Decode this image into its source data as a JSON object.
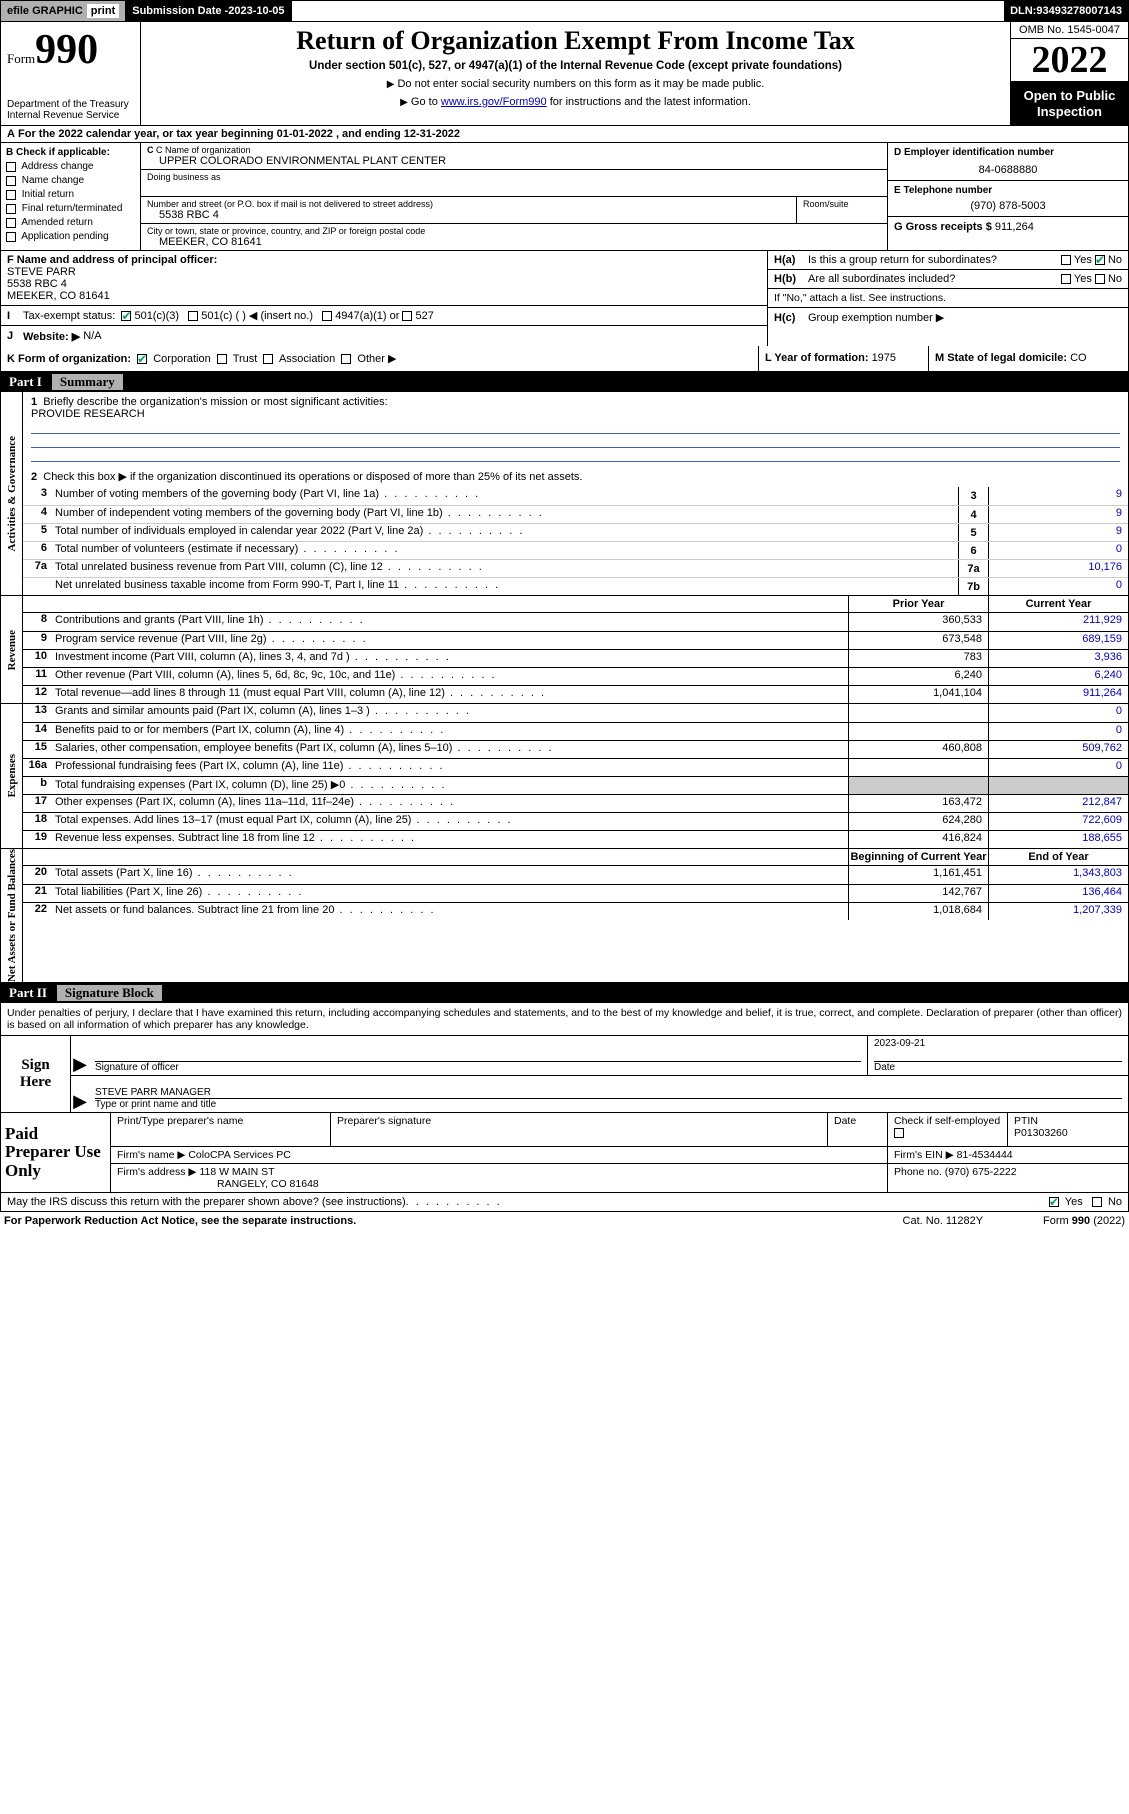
{
  "topbar": {
    "efile": "efile GRAPHIC",
    "print": "print",
    "subdate_lbl": "Submission Date - ",
    "subdate": "2023-10-05",
    "dln_lbl": "DLN: ",
    "dln": "93493278007143"
  },
  "header": {
    "form_prefix": "Form",
    "form_num": "990",
    "dept": "Department of the Treasury",
    "irs": "Internal Revenue Service",
    "title": "Return of Organization Exempt From Income Tax",
    "sub": "Under section 501(c), 527, or 4947(a)(1) of the Internal Revenue Code (except private foundations)",
    "note1": "Do not enter social security numbers on this form as it may be made public.",
    "note2_pre": "Go to ",
    "note2_link": "www.irs.gov/Form990",
    "note2_post": " for instructions and the latest information.",
    "omb": "OMB No. 1545-0047",
    "year": "2022",
    "open": "Open to Public Inspection"
  },
  "rowA": "For the 2022 calendar year, or tax year beginning 01-01-2022   , and ending 12-31-2022",
  "colB": {
    "hdr": "B Check if applicable:",
    "items": [
      "Address change",
      "Name change",
      "Initial return",
      "Final return/terminated",
      "Amended return",
      "Application pending"
    ]
  },
  "colC": {
    "name_lbl": "C Name of organization",
    "name": "UPPER COLORADO ENVIRONMENTAL PLANT CENTER",
    "dba_lbl": "Doing business as",
    "addr_lbl": "Number and street (or P.O. box if mail is not delivered to street address)",
    "room_lbl": "Room/suite",
    "addr": "5538 RBC 4",
    "city_lbl": "City or town, state or province, country, and ZIP or foreign postal code",
    "city": "MEEKER, CO  81641"
  },
  "colD": {
    "ein_lbl": "D Employer identification number",
    "ein": "84-0688880",
    "tel_lbl": "E Telephone number",
    "tel": "(970) 878-5003",
    "gross_lbl": "G Gross receipts $ ",
    "gross": "911,264"
  },
  "rowF": {
    "lbl": "F  Name and address of principal officer:",
    "name": "STEVE PARR",
    "addr1": "5538 RBC 4",
    "addr2": "MEEKER, CO  81641"
  },
  "rowH": {
    "a_lbl": "Is this a group return for subordinates?",
    "a_yes": "Yes",
    "a_no": "No",
    "b_lbl": "Are all subordinates included?",
    "b_yes": "Yes",
    "b_no": "No",
    "b_note": "If \"No,\" attach a list. See instructions.",
    "c_lbl": "Group exemption number ▶"
  },
  "rowI": {
    "lbl": "Tax-exempt status:",
    "o1": "501(c)(3)",
    "o2": "501(c) (   ) ◀ (insert no.)",
    "o3": "4947(a)(1) or",
    "o4": "527"
  },
  "rowJ": {
    "lbl": "Website: ▶",
    "val": "N/A"
  },
  "rowK": {
    "lbl": "K Form of organization:",
    "o1": "Corporation",
    "o2": "Trust",
    "o3": "Association",
    "o4": "Other ▶",
    "L_lbl": "L Year of formation: ",
    "L_val": "1975",
    "M_lbl": "M State of legal domicile: ",
    "M_val": "CO"
  },
  "part1": {
    "hdr_part": "Part I",
    "hdr_title": "Summary",
    "side_gov": "Activities & Governance",
    "side_rev": "Revenue",
    "side_exp": "Expenses",
    "side_net": "Net Assets or Fund Balances",
    "l1": "Briefly describe the organization's mission or most significant activities:",
    "mission": "PROVIDE RESEARCH",
    "l2": "Check this box ▶      if the organization discontinued its operations or disposed of more than 25% of its net assets.",
    "lines_gov": [
      {
        "n": "3",
        "t": "Number of voting members of the governing body (Part VI, line 1a)",
        "b": "3",
        "v": "9"
      },
      {
        "n": "4",
        "t": "Number of independent voting members of the governing body (Part VI, line 1b)",
        "b": "4",
        "v": "9"
      },
      {
        "n": "5",
        "t": "Total number of individuals employed in calendar year 2022 (Part V, line 2a)",
        "b": "5",
        "v": "9"
      },
      {
        "n": "6",
        "t": "Total number of volunteers (estimate if necessary)",
        "b": "6",
        "v": "0"
      },
      {
        "n": "7a",
        "t": "Total unrelated business revenue from Part VIII, column (C), line 12",
        "b": "7a",
        "v": "10,176"
      },
      {
        "n": "",
        "t": "Net unrelated business taxable income from Form 990-T, Part I, line 11",
        "b": "7b",
        "v": "0"
      }
    ],
    "col_prior": "Prior Year",
    "col_curr": "Current Year",
    "lines_rev": [
      {
        "n": "8",
        "t": "Contributions and grants (Part VIII, line 1h)",
        "p": "360,533",
        "c": "211,929"
      },
      {
        "n": "9",
        "t": "Program service revenue (Part VIII, line 2g)",
        "p": "673,548",
        "c": "689,159"
      },
      {
        "n": "10",
        "t": "Investment income (Part VIII, column (A), lines 3, 4, and 7d )",
        "p": "783",
        "c": "3,936"
      },
      {
        "n": "11",
        "t": "Other revenue (Part VIII, column (A), lines 5, 6d, 8c, 9c, 10c, and 11e)",
        "p": "6,240",
        "c": "6,240"
      },
      {
        "n": "12",
        "t": "Total revenue—add lines 8 through 11 (must equal Part VIII, column (A), line 12)",
        "p": "1,041,104",
        "c": "911,264"
      }
    ],
    "lines_exp": [
      {
        "n": "13",
        "t": "Grants and similar amounts paid (Part IX, column (A), lines 1–3 )",
        "p": "",
        "c": "0"
      },
      {
        "n": "14",
        "t": "Benefits paid to or for members (Part IX, column (A), line 4)",
        "p": "",
        "c": "0"
      },
      {
        "n": "15",
        "t": "Salaries, other compensation, employee benefits (Part IX, column (A), lines 5–10)",
        "p": "460,808",
        "c": "509,762"
      },
      {
        "n": "16a",
        "t": "Professional fundraising fees (Part IX, column (A), line 11e)",
        "p": "",
        "c": "0"
      },
      {
        "n": "b",
        "t": "Total fundraising expenses (Part IX, column (D), line 25) ▶0",
        "p": "—",
        "c": "—"
      },
      {
        "n": "17",
        "t": "Other expenses (Part IX, column (A), lines 11a–11d, 11f–24e)",
        "p": "163,472",
        "c": "212,847"
      },
      {
        "n": "18",
        "t": "Total expenses. Add lines 13–17 (must equal Part IX, column (A), line 25)",
        "p": "624,280",
        "c": "722,609"
      },
      {
        "n": "19",
        "t": "Revenue less expenses. Subtract line 18 from line 12",
        "p": "416,824",
        "c": "188,655"
      }
    ],
    "col_beg": "Beginning of Current Year",
    "col_end": "End of Year",
    "lines_net": [
      {
        "n": "20",
        "t": "Total assets (Part X, line 16)",
        "p": "1,161,451",
        "c": "1,343,803"
      },
      {
        "n": "21",
        "t": "Total liabilities (Part X, line 26)",
        "p": "142,767",
        "c": "136,464"
      },
      {
        "n": "22",
        "t": "Net assets or fund balances. Subtract line 21 from line 20",
        "p": "1,018,684",
        "c": "1,207,339"
      }
    ]
  },
  "part2": {
    "hdr_part": "Part II",
    "hdr_title": "Signature Block",
    "intro": "Under penalties of perjury, I declare that I have examined this return, including accompanying schedules and statements, and to the best of my knowledge and belief, it is true, correct, and complete. Declaration of preparer (other than officer) is based on all information of which preparer has any knowledge.",
    "sign_here": "Sign Here",
    "sig_of_officer": "Signature of officer",
    "date_lbl": "Date",
    "date": "2023-09-21",
    "officer": "STEVE PARR  MANAGER",
    "type_name": "Type or print name and title",
    "paid": "Paid Preparer Use Only",
    "pt_name_lbl": "Print/Type preparer's name",
    "pt_sig_lbl": "Preparer's signature",
    "pt_date_lbl": "Date",
    "pt_check": "Check        if self-employed",
    "ptin_lbl": "PTIN",
    "ptin": "P01303260",
    "firm_name_lbl": "Firm's name   ▶",
    "firm_name": "ColoCPA Services PC",
    "firm_ein_lbl": "Firm's EIN ▶",
    "firm_ein": "81-4534444",
    "firm_addr_lbl": "Firm's address ▶",
    "firm_addr1": "118 W MAIN ST",
    "firm_addr2": "RANGELY, CO  81648",
    "firm_phone_lbl": "Phone no. ",
    "firm_phone": "(970) 675-2222",
    "may": "May the IRS discuss this return with the preparer shown above? (see instructions)",
    "may_yes": "Yes",
    "may_no": "No"
  },
  "footer": {
    "left": "For Paperwork Reduction Act Notice, see the separate instructions.",
    "mid": "Cat. No. 11282Y",
    "right": "Form 990 (2022)"
  }
}
